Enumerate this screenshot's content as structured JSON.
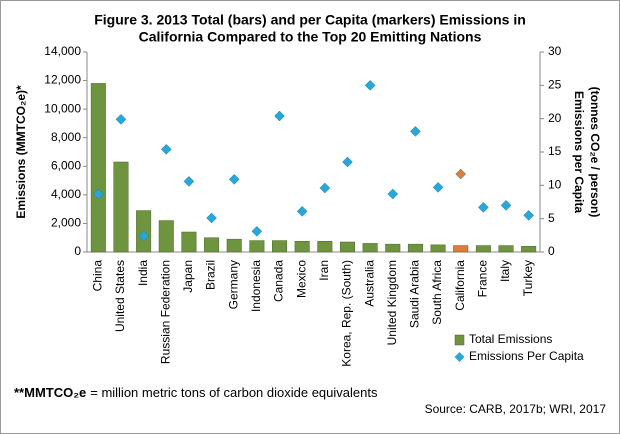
{
  "chart_data": {
    "type": "bar",
    "title": [
      "Figure 3. 2013 Total (bars) and per Capita (markers) Emissions in",
      "California Compared to the Top 20 Emitting Nations"
    ],
    "ylabel": "Emissions (MMTCO₂e)*",
    "y2label": [
      "Emissions per Capita",
      "(tonnes CO₂e / person)"
    ],
    "categories": [
      "China",
      "United States",
      "India",
      "Russian Federation",
      "Japan",
      "Brazil",
      "Germany",
      "Indonesia",
      "Canada",
      "Mexico",
      "Iran",
      "Korea, Rep. (South)",
      "Australia",
      "United Kingdom",
      "Saudi Arabia",
      "South Africa",
      "California",
      "France",
      "Italy",
      "Turkey"
    ],
    "series": [
      {
        "name": "Total Emissions",
        "type": "bar",
        "color": "#6f9440",
        "colors": [
          "#6f9440",
          "#6f9440",
          "#6f9440",
          "#6f9440",
          "#6f9440",
          "#6f9440",
          "#6f9440",
          "#6f9440",
          "#6f9440",
          "#6f9440",
          "#6f9440",
          "#6f9440",
          "#6f9440",
          "#6f9440",
          "#6f9440",
          "#6f9440",
          "#e07b39",
          "#6f9440",
          "#6f9440",
          "#6f9440"
        ],
        "values": [
          11800,
          6300,
          2900,
          2200,
          1400,
          1000,
          900,
          800,
          800,
          750,
          750,
          700,
          600,
          550,
          550,
          500,
          450,
          450,
          450,
          400
        ]
      },
      {
        "name": "Emissions Per Capita",
        "type": "scatter",
        "axis": "y2",
        "color": "#2aa7d9",
        "colors": [
          "#2aa7d9",
          "#2aa7d9",
          "#2aa7d9",
          "#2aa7d9",
          "#2aa7d9",
          "#2aa7d9",
          "#2aa7d9",
          "#2aa7d9",
          "#2aa7d9",
          "#2aa7d9",
          "#2aa7d9",
          "#2aa7d9",
          "#2aa7d9",
          "#2aa7d9",
          "#2aa7d9",
          "#2aa7d9",
          "#e07b39",
          "#2aa7d9",
          "#2aa7d9",
          "#2aa7d9"
        ],
        "values": [
          8.7,
          19.9,
          2.4,
          15.4,
          10.6,
          5.1,
          10.9,
          3.1,
          20.4,
          6.1,
          9.6,
          13.5,
          25.0,
          8.7,
          18.1,
          9.7,
          11.7,
          6.7,
          7.0,
          5.5
        ]
      }
    ],
    "ylim": [
      0,
      14000
    ],
    "yticks": [
      0,
      {
        "value": 2000,
        "label": "2,000"
      },
      {
        "value": 4000,
        "label": "4,000"
      },
      {
        "value": 6000,
        "label": "6,000"
      },
      {
        "value": 8000,
        "label": "8,000"
      },
      {
        "value": 10000,
        "label": "10,000"
      },
      {
        "value": 12000,
        "label": "12,000"
      },
      {
        "value": 14000,
        "label": "14,000"
      }
    ],
    "y2lim": [
      0,
      30
    ],
    "y2ticks": [
      0,
      5,
      10,
      15,
      20,
      25,
      30
    ],
    "grid": false,
    "legend": "bottom-right",
    "footnote": {
      "bold": "**MMTCO₂e",
      "text": "= million metric tons of carbon dioxide equivalents"
    },
    "source": "Source: CARB, 2017b; WRI, 2017"
  }
}
